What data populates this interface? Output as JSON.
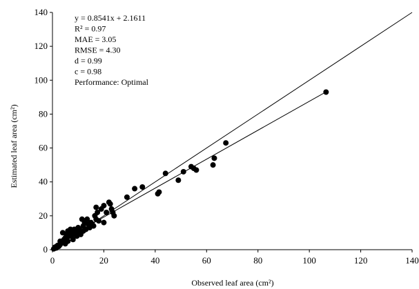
{
  "chart_data": {
    "type": "scatter",
    "title": "",
    "xlabel": "Observed leaf area (cm²)",
    "ylabel": "Estimated leaf area (cm²)",
    "xlim": [
      0,
      140
    ],
    "ylim": [
      0,
      140
    ],
    "xticks": [
      0,
      20,
      40,
      60,
      80,
      100,
      120,
      140
    ],
    "yticks": [
      0,
      20,
      40,
      60,
      80,
      100,
      120,
      140
    ],
    "grid": false,
    "legend": "none",
    "annotations": [
      "y = 0.8541x + 2.1611",
      "R² = 0.97",
      "MAE = 3.05",
      "RMSE = 4.30",
      "d = 0.99",
      "c = 0.98",
      "Performance: Optimal"
    ],
    "lines": [
      {
        "kind": "1:1 line",
        "x": [
          0,
          140
        ],
        "y": [
          0,
          140
        ]
      },
      {
        "kind": "regression",
        "slope": 0.8541,
        "intercept": 2.1611,
        "x": [
          0,
          107
        ]
      }
    ],
    "marker_color": "#000000",
    "points": [
      [
        0.5,
        0.5
      ],
      [
        1,
        1.5
      ],
      [
        1.5,
        1
      ],
      [
        2,
        2.5
      ],
      [
        2.5,
        2
      ],
      [
        3,
        3
      ],
      [
        3,
        5
      ],
      [
        3.5,
        4
      ],
      [
        4,
        10
      ],
      [
        4.5,
        6
      ],
      [
        5,
        7
      ],
      [
        5,
        3.5
      ],
      [
        5.5,
        9
      ],
      [
        6,
        5
      ],
      [
        6,
        11
      ],
      [
        6.5,
        8
      ],
      [
        7,
        12
      ],
      [
        7.5,
        10
      ],
      [
        8,
        6
      ],
      [
        8,
        9
      ],
      [
        8.5,
        12
      ],
      [
        9,
        11
      ],
      [
        9.5,
        8
      ],
      [
        10,
        13
      ],
      [
        10,
        10
      ],
      [
        10.5,
        12
      ],
      [
        11,
        9
      ],
      [
        11.5,
        18
      ],
      [
        12,
        14
      ],
      [
        12,
        11
      ],
      [
        12.5,
        16
      ],
      [
        13,
        12
      ],
      [
        13.5,
        18
      ],
      [
        14,
        15
      ],
      [
        14.5,
        13
      ],
      [
        15,
        16
      ],
      [
        15.5,
        15
      ],
      [
        16,
        14
      ],
      [
        16.5,
        20
      ],
      [
        17,
        18
      ],
      [
        17,
        25
      ],
      [
        17.5,
        22
      ],
      [
        18,
        17
      ],
      [
        19,
        24
      ],
      [
        20,
        26
      ],
      [
        20,
        16
      ],
      [
        21,
        22
      ],
      [
        22,
        28
      ],
      [
        22.5,
        27
      ],
      [
        23,
        24
      ],
      [
        23.5,
        22
      ],
      [
        24,
        20
      ],
      [
        29,
        31
      ],
      [
        32,
        36
      ],
      [
        35,
        37
      ],
      [
        41,
        33
      ],
      [
        41.5,
        34
      ],
      [
        44,
        45
      ],
      [
        49,
        41
      ],
      [
        51,
        46
      ],
      [
        54,
        49
      ],
      [
        55,
        48
      ],
      [
        56,
        47
      ],
      [
        62.5,
        50
      ],
      [
        63,
        54
      ],
      [
        67.5,
        63
      ],
      [
        106.5,
        93
      ]
    ]
  }
}
